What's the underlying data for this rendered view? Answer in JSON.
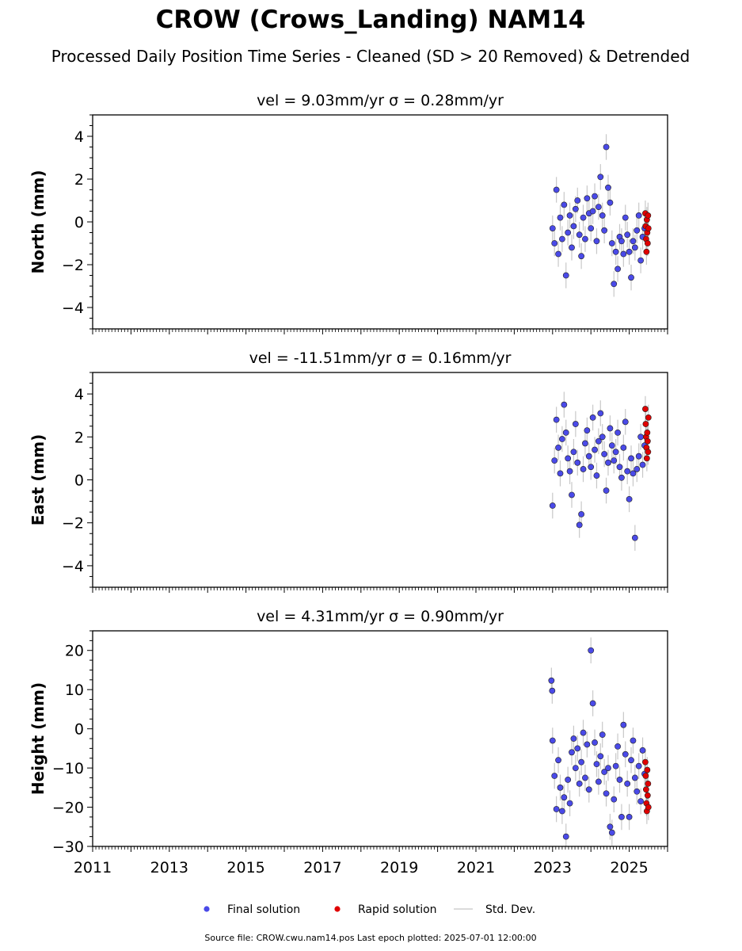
{
  "title": "CROW (Crows_Landing) NAM14",
  "subtitle": "Processed Daily Position Time Series - Cleaned (SD > 20 Removed) & Detrended",
  "source_note": "Source file: CROW.cwu.nam14.pos  Last epoch plotted: 2025-07-01 12:00:00",
  "legend": [
    {
      "label": "Final solution",
      "color": "#4a4ae8",
      "kind": "dot"
    },
    {
      "label": "Rapid solution",
      "color": "#e00000",
      "kind": "dot"
    },
    {
      "label": "Std. Dev.",
      "color": "#cfcfcf",
      "kind": "line"
    }
  ],
  "chart_data": [
    {
      "type": "scatter",
      "title": "vel = 9.03mm/yr   σ = 0.28mm/yr",
      "ylabel": "North (mm)",
      "xlim": [
        2011,
        2026
      ],
      "ylim": [
        -5,
        5
      ],
      "yticks": [
        -4,
        -2,
        0,
        2,
        4
      ],
      "xticks": [
        2011,
        2013,
        2015,
        2017,
        2019,
        2021,
        2023,
        2025
      ],
      "series": [
        {
          "name": "Final solution",
          "color": "#4a4ae8",
          "x": [
            2023.0,
            2023.05,
            2023.1,
            2023.15,
            2023.2,
            2023.25,
            2023.3,
            2023.35,
            2023.4,
            2023.45,
            2023.5,
            2023.55,
            2023.6,
            2023.65,
            2023.7,
            2023.75,
            2023.8,
            2023.85,
            2023.9,
            2023.95,
            2024.0,
            2024.05,
            2024.1,
            2024.15,
            2024.2,
            2024.25,
            2024.3,
            2024.35,
            2024.4,
            2024.45,
            2024.5,
            2024.55,
            2024.6,
            2024.65,
            2024.7,
            2024.75,
            2024.8,
            2024.85,
            2024.9,
            2024.95,
            2025.0,
            2025.05,
            2025.1,
            2025.15,
            2025.2,
            2025.25,
            2025.3,
            2025.35,
            2025.4
          ],
          "y": [
            -0.3,
            -1.0,
            1.5,
            -1.5,
            0.2,
            -0.8,
            0.8,
            -2.5,
            -0.5,
            0.3,
            -1.2,
            -0.2,
            0.6,
            1.0,
            -0.6,
            -1.6,
            0.2,
            -0.8,
            1.1,
            0.4,
            -0.3,
            0.5,
            1.2,
            -0.9,
            0.7,
            2.1,
            0.3,
            -0.4,
            3.5,
            1.6,
            0.9,
            -1.0,
            -2.9,
            -1.4,
            -2.2,
            -0.7,
            -0.9,
            -1.5,
            0.2,
            -0.6,
            -1.4,
            -2.6,
            -0.9,
            -1.2,
            -0.4,
            0.3,
            -1.8,
            -0.7,
            -0.3
          ]
        },
        {
          "name": "Rapid solution",
          "color": "#e00000",
          "x": [
            2025.42,
            2025.43,
            2025.44,
            2025.45,
            2025.46,
            2025.47,
            2025.48,
            2025.49,
            2025.5
          ],
          "y": [
            0.4,
            -0.2,
            -0.8,
            -1.4,
            0.1,
            -0.5,
            -1.0,
            0.3,
            -0.3
          ]
        }
      ]
    },
    {
      "type": "scatter",
      "title": "vel = -11.51mm/yr   σ = 0.16mm/yr",
      "ylabel": "East (mm)",
      "xlim": [
        2011,
        2026
      ],
      "ylim": [
        -5,
        5
      ],
      "yticks": [
        -4,
        -2,
        0,
        2,
        4
      ],
      "xticks": [
        2011,
        2013,
        2015,
        2017,
        2019,
        2021,
        2023,
        2025
      ],
      "series": [
        {
          "name": "Final solution",
          "color": "#4a4ae8",
          "x": [
            2023.0,
            2023.05,
            2023.1,
            2023.15,
            2023.2,
            2023.25,
            2023.3,
            2023.35,
            2023.4,
            2023.45,
            2023.5,
            2023.55,
            2023.6,
            2023.65,
            2023.7,
            2023.75,
            2023.8,
            2023.85,
            2023.9,
            2023.95,
            2024.0,
            2024.05,
            2024.1,
            2024.15,
            2024.2,
            2024.25,
            2024.3,
            2024.35,
            2024.4,
            2024.45,
            2024.5,
            2024.55,
            2024.6,
            2024.65,
            2024.7,
            2024.75,
            2024.8,
            2024.85,
            2024.9,
            2024.95,
            2025.0,
            2025.05,
            2025.1,
            2025.15,
            2025.2,
            2025.25,
            2025.3,
            2025.35,
            2025.4
          ],
          "y": [
            -1.2,
            0.9,
            2.8,
            1.5,
            0.3,
            1.9,
            3.5,
            2.2,
            1.0,
            0.4,
            -0.7,
            1.3,
            2.6,
            0.8,
            -2.1,
            -1.6,
            0.5,
            1.7,
            2.3,
            1.1,
            0.6,
            2.9,
            1.4,
            0.2,
            1.8,
            3.1,
            2.0,
            1.2,
            -0.5,
            0.8,
            2.4,
            1.6,
            0.9,
            1.3,
            2.2,
            0.6,
            0.1,
            1.5,
            2.7,
            0.4,
            -0.9,
            1.0,
            0.3,
            -2.7,
            0.5,
            1.1,
            2.0,
            0.7,
            1.6
          ]
        },
        {
          "name": "Rapid solution",
          "color": "#e00000",
          "x": [
            2025.42,
            2025.43,
            2025.44,
            2025.45,
            2025.46,
            2025.47,
            2025.48,
            2025.49,
            2025.5
          ],
          "y": [
            3.3,
            2.6,
            2.0,
            1.5,
            1.0,
            2.2,
            1.8,
            1.3,
            2.9
          ]
        }
      ]
    },
    {
      "type": "scatter",
      "title": "vel = 4.31mm/yr   σ = 0.90mm/yr",
      "ylabel": "Height (mm)",
      "xlim": [
        2011,
        2026
      ],
      "ylim": [
        -30,
        25
      ],
      "yticks": [
        -30,
        -20,
        -10,
        0,
        10,
        20
      ],
      "xticks": [
        2011,
        2013,
        2015,
        2017,
        2019,
        2021,
        2023,
        2025
      ],
      "series": [
        {
          "name": "Final solution",
          "color": "#4a4ae8",
          "x": [
            2022.97,
            2022.99,
            2023.0,
            2023.05,
            2023.1,
            2023.15,
            2023.2,
            2023.25,
            2023.3,
            2023.35,
            2023.4,
            2023.45,
            2023.5,
            2023.55,
            2023.6,
            2023.65,
            2023.7,
            2023.75,
            2023.8,
            2023.85,
            2023.9,
            2023.95,
            2024.0,
            2024.05,
            2024.1,
            2024.15,
            2024.2,
            2024.25,
            2024.3,
            2024.35,
            2024.4,
            2024.45,
            2024.5,
            2024.55,
            2024.6,
            2024.65,
            2024.7,
            2024.75,
            2024.8,
            2024.85,
            2024.9,
            2024.95,
            2025.0,
            2025.05,
            2025.1,
            2025.15,
            2025.2,
            2025.25,
            2025.3,
            2025.35,
            2025.4
          ],
          "y": [
            12.3,
            9.7,
            -3.0,
            -12.0,
            -20.5,
            -8.0,
            -15.0,
            -21.0,
            -17.5,
            -27.5,
            -13.0,
            -19.0,
            -6.0,
            -2.5,
            -10.0,
            -5.0,
            -14.0,
            -8.5,
            -1.0,
            -12.5,
            -4.0,
            -15.5,
            20.0,
            6.5,
            -3.5,
            -9.0,
            -13.5,
            -7.0,
            -1.5,
            -11.0,
            -16.5,
            -10.0,
            -25.0,
            -26.5,
            -18.0,
            -9.5,
            -4.5,
            -13.0,
            -22.5,
            1.0,
            -6.5,
            -14.0,
            -22.5,
            -8.0,
            -3.0,
            -12.5,
            -16.0,
            -9.5,
            -18.5,
            -5.5,
            -11.5
          ]
        },
        {
          "name": "Rapid solution",
          "color": "#e00000",
          "x": [
            2025.42,
            2025.43,
            2025.44,
            2025.45,
            2025.46,
            2025.47,
            2025.48,
            2025.49,
            2025.5
          ],
          "y": [
            -8.5,
            -12.0,
            -15.5,
            -19.0,
            -21.0,
            -10.5,
            -17.0,
            -14.0,
            -20.0
          ]
        }
      ]
    }
  ]
}
